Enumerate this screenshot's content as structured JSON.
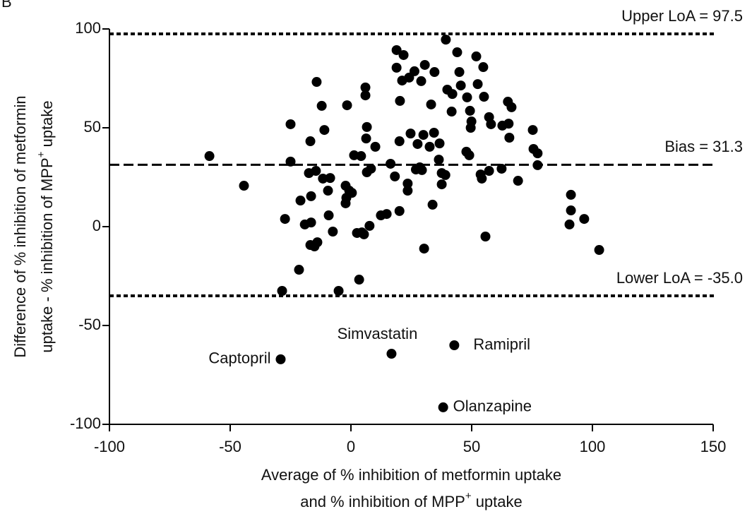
{
  "chart_data": {
    "type": "scatter",
    "panel_label": "B",
    "xlabel_lines": [
      [
        {
          "text": "Average of % inhibition of metformin uptake"
        }
      ],
      [
        {
          "text": "and % inhibition of MPP"
        },
        {
          "text": "+",
          "sup": true
        },
        {
          "text": " uptake"
        }
      ]
    ],
    "ylabel_lines": [
      [
        {
          "text": "Difference of % inhibition of metformin"
        }
      ],
      [
        {
          "text": "uptake - % inhibition of MPP"
        },
        {
          "text": "+",
          "sup": true
        },
        {
          "text": " uptake"
        }
      ]
    ],
    "xlim": [
      -100,
      150
    ],
    "xticks": [
      -100,
      -50,
      0,
      50,
      100,
      150
    ],
    "ylim": [
      -100,
      100
    ],
    "yticks": [
      -100,
      -50,
      0,
      50,
      100
    ],
    "color": "#000000",
    "x": [
      -58.6,
      -44.3,
      -25,
      -25,
      -27.3,
      -28.5,
      -21.5,
      -20.9,
      -19.1,
      -16.8,
      -17.4,
      -16.5,
      -16.5,
      -16.8,
      -15.1,
      -13.9,
      -14.2,
      -14.5,
      -12.1,
      -11,
      -11.6,
      -9.5,
      -8.6,
      -9.2,
      -7.5,
      -5.1,
      -1.6,
      -2.2,
      -2.2,
      -1.9,
      -0.7,
      0.4,
      1.3,
      2.5,
      3.4,
      4.5,
      5.4,
      4.2,
      6,
      6,
      6.6,
      6.3,
      6.6,
      8.3,
      7.7,
      10.1,
      12.4,
      14.8,
      16.4,
      18.2,
      18.9,
      18.9,
      20.3,
      20.1,
      20.1,
      21.2,
      21.8,
      23.5,
      23.5,
      24.1,
      24.7,
      26.3,
      26.9,
      27.6,
      28.5,
      29.4,
      29.1,
      30,
      30.6,
      30.3,
      32.6,
      33.2,
      33.8,
      34.6,
      34.4,
      36.4,
      36.7,
      37.6,
      37.6,
      39.1,
      39.3,
      39.9,
      41.7,
      42,
      44,
      44.9,
      45.5,
      48.1,
      47.8,
      49,
      49.3,
      49.9,
      49.6,
      51.9,
      52.5,
      53.7,
      54.2,
      54.8,
      55.1,
      55.7,
      57.2,
      57.2,
      58,
      62.4,
      62.7,
      65,
      65.3,
      66.5,
      65.6,
      69.2,
      75.3,
      75.6,
      77.3,
      77.3,
      91.1,
      91.1,
      90.5,
      96.6,
      102.8
    ],
    "values": [
      35.7,
      20.7,
      51.8,
      32.9,
      3.9,
      -32.5,
      -21.8,
      13.2,
      1.1,
      43.2,
      27.1,
      15.4,
      2.1,
      -9.3,
      -10,
      -7.9,
      73.2,
      28.2,
      61.1,
      48.9,
      24.3,
      18.2,
      24.6,
      5.7,
      -2.5,
      -32.5,
      61.4,
      20.7,
      11.8,
      14.6,
      18.2,
      17.1,
      36.1,
      -3.2,
      -26.8,
      -2.9,
      -3.9,
      35.7,
      70.4,
      66.4,
      50.4,
      44.6,
      27.5,
      29.3,
      0.4,
      40.4,
      5.7,
      6.4,
      31.8,
      25.4,
      89.3,
      80.4,
      63.6,
      43.2,
      7.9,
      73.9,
      86.8,
      21.8,
      18.2,
      75.4,
      47.1,
      78.6,
      28.9,
      41.8,
      30,
      28.6,
      73.6,
      46.4,
      81.8,
      -11.1,
      40.4,
      61.8,
      11.1,
      78.2,
      47.5,
      33.9,
      42.1,
      27.1,
      21.4,
      26.1,
      94.6,
      69.3,
      58.2,
      67.1,
      88.2,
      78.2,
      71.4,
      65.4,
      37.9,
      36.1,
      58.6,
      53.2,
      50,
      86.1,
      72.1,
      26.4,
      24.3,
      80.7,
      65.7,
      -5,
      55.4,
      28.2,
      51.8,
      29.3,
      51.1,
      63.2,
      52.1,
      60.4,
      45,
      23.2,
      48.9,
      39.3,
      37.1,
      31.1,
      16.1,
      8.2,
      1.1,
      3.9,
      -11.8
    ],
    "labeled_points": [
      {
        "label": "Captopril",
        "x": -29.1,
        "y": -67.1,
        "side": "left"
      },
      {
        "label": "Simvastatin",
        "x": 16.8,
        "y": -64.3,
        "side": "above"
      },
      {
        "label": "Ramipril",
        "x": 42.8,
        "y": -60,
        "side": "right"
      },
      {
        "label": "Olanzapine",
        "x": 38.2,
        "y": -91.4,
        "side": "right"
      }
    ],
    "reference_lines": [
      {
        "label": "Upper LoA = 97.5",
        "value": 97.5,
        "style": "dotted"
      },
      {
        "label": "Bias = 31.3",
        "value": 31.3,
        "style": "dashed"
      },
      {
        "label": "Lower LoA = -35.0",
        "value": -35.0,
        "style": "dotted"
      }
    ]
  }
}
